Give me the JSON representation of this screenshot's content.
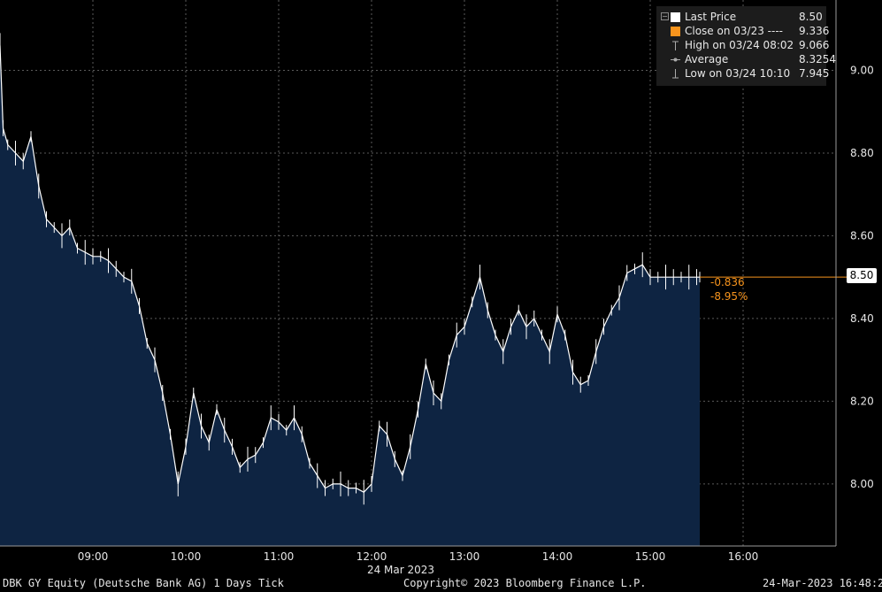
{
  "chart_data": {
    "type": "area",
    "title": "",
    "xlabel": "24 Mar 2023",
    "ylabel": "",
    "x_ticks": [
      "09:00",
      "10:00",
      "11:00",
      "12:00",
      "13:00",
      "14:00",
      "15:00",
      "16:00"
    ],
    "y_ticks": [
      "8.00",
      "8.20",
      "8.40",
      "8.60",
      "8.80",
      "9.00"
    ],
    "ylim": [
      7.85,
      9.17
    ],
    "xlim": [
      "08:00",
      "17:00"
    ],
    "grid": true,
    "series": [
      {
        "name": "Last Price",
        "x": [
          "08:00",
          "08:02",
          "08:05",
          "08:10",
          "08:15",
          "08:20",
          "08:25",
          "08:30",
          "08:35",
          "08:40",
          "08:45",
          "08:50",
          "08:55",
          "09:00",
          "09:05",
          "09:10",
          "09:15",
          "09:20",
          "09:25",
          "09:30",
          "09:35",
          "09:40",
          "09:45",
          "09:50",
          "09:55",
          "10:00",
          "10:05",
          "10:10",
          "10:15",
          "10:20",
          "10:25",
          "10:30",
          "10:35",
          "10:40",
          "10:45",
          "10:50",
          "10:55",
          "11:00",
          "11:05",
          "11:10",
          "11:15",
          "11:20",
          "11:25",
          "11:30",
          "11:35",
          "11:40",
          "11:45",
          "11:50",
          "11:55",
          "12:00",
          "12:05",
          "12:10",
          "12:15",
          "12:20",
          "12:25",
          "12:30",
          "12:35",
          "12:40",
          "12:45",
          "12:50",
          "12:55",
          "13:00",
          "13:05",
          "13:10",
          "13:15",
          "13:20",
          "13:25",
          "13:30",
          "13:35",
          "13:40",
          "13:45",
          "13:50",
          "13:55",
          "14:00",
          "14:05",
          "14:10",
          "14:15",
          "14:20",
          "14:25",
          "14:30",
          "14:35",
          "14:40",
          "14:45",
          "14:50",
          "14:55",
          "15:00",
          "15:05",
          "15:10",
          "15:15",
          "15:20",
          "15:25",
          "15:30",
          "15:32"
        ],
        "y": [
          9.06,
          8.86,
          8.82,
          8.8,
          8.78,
          8.84,
          8.72,
          8.64,
          8.62,
          8.6,
          8.62,
          8.57,
          8.56,
          8.55,
          8.55,
          8.54,
          8.52,
          8.5,
          8.49,
          8.43,
          8.34,
          8.3,
          8.22,
          8.12,
          8.0,
          8.09,
          8.22,
          8.14,
          8.1,
          8.18,
          8.13,
          8.09,
          8.04,
          8.06,
          8.07,
          8.1,
          8.16,
          8.15,
          8.13,
          8.16,
          8.12,
          8.05,
          8.02,
          7.99,
          8.0,
          8.0,
          7.99,
          7.99,
          7.98,
          8.0,
          8.14,
          8.12,
          8.06,
          8.02,
          8.09,
          8.18,
          8.29,
          8.22,
          8.2,
          8.3,
          8.36,
          8.38,
          8.44,
          8.5,
          8.42,
          8.36,
          8.32,
          8.38,
          8.42,
          8.38,
          8.4,
          8.36,
          8.32,
          8.41,
          8.36,
          8.27,
          8.24,
          8.25,
          8.32,
          8.38,
          8.42,
          8.45,
          8.51,
          8.52,
          8.53,
          8.5,
          8.5,
          8.5,
          8.5,
          8.5,
          8.5,
          8.5,
          8.5
        ]
      }
    ],
    "last_value": "8.50",
    "change": "-0.836",
    "change_pct": "-8.95%",
    "colors": {
      "background": "#000000",
      "area": "#0e2442",
      "line": "#ffffff",
      "grid": "#5a5a5a",
      "change": "#f7941d",
      "close_marker": "#f7941d"
    },
    "legend": [
      {
        "label": "Last Price",
        "value": "8.50",
        "symbol": "white-square"
      },
      {
        "label": "Close on 03/23 ----",
        "value": "9.336",
        "symbol": "orange-square"
      },
      {
        "label": "High on 03/24 08:02",
        "value": "9.066",
        "symbol": "high-marker-icon"
      },
      {
        "label": "Average",
        "value": "8.3254",
        "symbol": "average-marker-icon"
      },
      {
        "label": "Low on 03/24 10:10",
        "value": "7.945",
        "symbol": "low-marker-icon"
      }
    ],
    "legend_position": "top-right"
  },
  "footer": {
    "left": "DBK GY Equity (Deutsche Bank AG) 1 Days  Tick",
    "center": "Copyright© 2023 Bloomberg Finance L.P.",
    "right": "24-Mar-2023 16:48:26"
  }
}
